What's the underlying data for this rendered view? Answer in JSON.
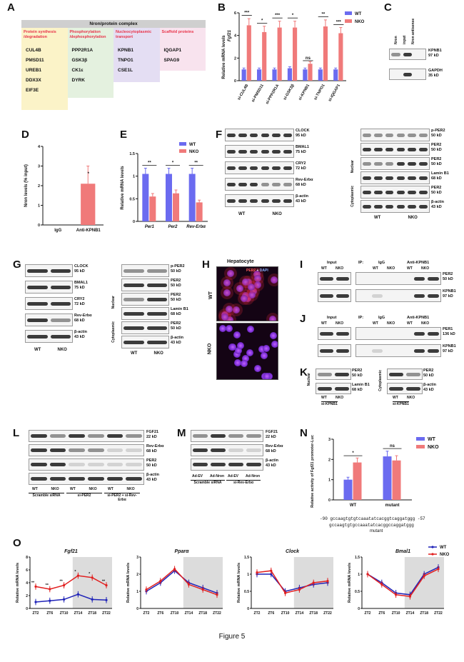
{
  "caption": "Figure 5",
  "A": {
    "letter": "A",
    "title": "Nron/protein complex",
    "categories": [
      {
        "name": "Protein synthesis /degradation",
        "color": "#fbf3c8",
        "items": [
          "CUL4B",
          "PMSD11",
          "UREB1",
          "DDX3X",
          "EIF3E"
        ]
      },
      {
        "name": "Phosphorylation /dephosphorylation",
        "color": "#e4f1df",
        "items": [
          "PPP2R1A",
          "GSK3β",
          "CK1ε",
          "DYRK"
        ]
      },
      {
        "name": "Nucleocytoplasmic transport",
        "color": "#e4def3",
        "items": [
          "KPNB1",
          "TNPO1",
          "CSE1L"
        ]
      },
      {
        "name": "Scaffold proteins",
        "color": "#f8e3ee",
        "items": [
          "IQGAP1",
          "SPAG9"
        ]
      }
    ]
  },
  "B": {
    "letter": "B",
    "ylabel_gene": "Fgf21",
    "ylabel": "Relative mRNA levels",
    "legend": [
      "WT",
      "NKO"
    ],
    "chart_data": {
      "type": "bar",
      "categories": [
        "si-CUL4B",
        "si-PMSD11",
        "si-PPP2R1A",
        "si-GSK3β",
        "si-KPNB1",
        "si-TNPO1",
        "si-IQGAP1"
      ],
      "series": [
        {
          "name": "WT",
          "values": [
            1.0,
            1.0,
            1.0,
            1.1,
            1.0,
            1.0,
            1.0
          ],
          "color": "#6b6bf0"
        },
        {
          "name": "NKO",
          "values": [
            4.9,
            4.3,
            4.7,
            4.7,
            1.5,
            4.8,
            4.2
          ],
          "color": "#f07a7a"
        }
      ],
      "ylim": [
        0,
        6
      ],
      "yticks": [
        0,
        2,
        4,
        6
      ],
      "significance": [
        "***",
        "*",
        "***",
        "*",
        "ns",
        "**",
        "***"
      ]
    }
  },
  "C": {
    "letter": "C",
    "lanes": [
      "Nron",
      "input",
      "Nron antisense"
    ],
    "blots": [
      {
        "name": "KPNB1",
        "size": "97 kD"
      },
      {
        "name": "GAPDH",
        "size": "35 kD"
      }
    ]
  },
  "D": {
    "letter": "D",
    "ylabel": "Nron levels (% input)",
    "chart_data": {
      "type": "bar",
      "categories": [
        "IgG",
        "Anti-KPNB1"
      ],
      "values": [
        0.0,
        2.1
      ],
      "error": [
        0,
        0.9
      ],
      "ylim": [
        0,
        4
      ],
      "yticks": [
        0,
        1,
        2,
        3,
        4
      ],
      "significance": "*"
    }
  },
  "E": {
    "letter": "E",
    "ylabel": "Relative mRNA levels",
    "legend": [
      "WT",
      "NKO"
    ],
    "chart_data": {
      "type": "bar",
      "categories": [
        "Per1",
        "Per2",
        "Rev-Erbα"
      ],
      "series": [
        {
          "name": "WT",
          "values": [
            1.05,
            1.05,
            1.05
          ],
          "color": "#6b6bf0"
        },
        {
          "name": "NKO",
          "values": [
            0.55,
            0.62,
            0.42
          ],
          "color": "#f07a7a"
        }
      ],
      "ylim": [
        0,
        1.5
      ],
      "yticks": [
        0.0,
        0.5,
        1.0,
        1.5
      ],
      "significance": [
        "**",
        "*",
        "**"
      ]
    }
  },
  "F": {
    "letter": "F",
    "left_blots": [
      {
        "name": "CLOCK",
        "size": "95 kD"
      },
      {
        "name": "BMAL1",
        "size": "75 kD"
      },
      {
        "name": "CRY2",
        "size": "72 kD"
      },
      {
        "name": "Rev-Erbα",
        "size": "68 kD"
      },
      {
        "name": "β-actin",
        "size": "43 kD"
      }
    ],
    "right_blots": [
      {
        "name": "p-PER2",
        "size": "50 kD"
      },
      {
        "name": "PER2",
        "size": "50 kD"
      },
      {
        "name": "PER2",
        "size": "50 kD"
      },
      {
        "name": "Lamin B1",
        "size": "68 kD"
      },
      {
        "name": "PER2",
        "size": "50 kD"
      },
      {
        "name": "β-actin",
        "size": "43 kD"
      }
    ],
    "nuclear": "Nuclear",
    "cytoplasmic": "Cytoplasmic",
    "groups": [
      "WT",
      "NKO"
    ]
  },
  "G": {
    "letter": "G",
    "left_blots": [
      {
        "name": "CLOCK",
        "size": "95 kD"
      },
      {
        "name": "BMAL1",
        "size": "75 kD"
      },
      {
        "name": "CRY2",
        "size": "72 kD"
      },
      {
        "name": "Rev-Erbα",
        "size": "68 kD"
      },
      {
        "name": "β-actin",
        "size": "43 kD"
      }
    ],
    "right_blots": [
      {
        "name": "p-PER2",
        "size": "50 kD"
      },
      {
        "name": "PER2",
        "size": "50 kD"
      },
      {
        "name": "PER2",
        "size": "50 kD"
      },
      {
        "name": "Lamin B1",
        "size": "68 kD"
      },
      {
        "name": "PER2",
        "size": "50 kD"
      },
      {
        "name": "β-actin",
        "size": "43 kD"
      }
    ],
    "nuclear": "Nuclear",
    "cytoplasmic": "Cytoplasmic",
    "groups": [
      "WT",
      "NKO"
    ]
  },
  "H": {
    "letter": "H",
    "title": "Hepatocyte",
    "stain_per2": "PER2",
    "stain_plus": " + ",
    "stain_dapi": "DAPI",
    "rows": [
      "WT",
      "NKO"
    ]
  },
  "I": {
    "letter": "I",
    "input": "Input",
    "ip": "IP:",
    "igg": "IgG",
    "anti": "Anti-KPNB1",
    "groups": [
      "WT",
      "NKO"
    ],
    "blots": [
      {
        "name": "PER2",
        "size": "50 kD"
      },
      {
        "name": "KPNB1",
        "size": "97 kD"
      }
    ]
  },
  "J": {
    "letter": "J",
    "input": "Input",
    "ip": "IP:",
    "igg": "IgG",
    "anti": "Anti-KPNB1",
    "groups": [
      "WT",
      "NKO"
    ],
    "blots": [
      {
        "name": "PER1",
        "size": "136 kD"
      },
      {
        "name": "KPNB1",
        "size": "97 kD"
      }
    ]
  },
  "K": {
    "letter": "K",
    "nuclear": "Nuclear",
    "cytoplasmic": "Cytoplasmic",
    "nuc_blots": [
      {
        "name": "PER2",
        "size": "50 kD"
      },
      {
        "name": "Lamin B1",
        "size": "68 kD"
      }
    ],
    "cyto_blots": [
      {
        "name": "PER2",
        "size": "50 kD"
      },
      {
        "name": "β-actin",
        "size": "43 kD"
      }
    ],
    "groups": [
      "WT",
      "NKO"
    ],
    "treatment": "si-KPNB1"
  },
  "L": {
    "letter": "L",
    "blots": [
      {
        "name": "FGF21",
        "size": "22 kD"
      },
      {
        "name": "Rev-Erbα",
        "size": "68 kD"
      },
      {
        "name": "PER2",
        "size": "50 kD"
      },
      {
        "name": "β-actin",
        "size": "43 kD"
      }
    ],
    "groups": [
      "WT",
      "NKO",
      "WT",
      "NKO",
      "WT",
      "NKO"
    ],
    "conditions": [
      "Scramble siRNA",
      "si-PER2",
      "si-PER2 + si-Rev-Erbα"
    ]
  },
  "M": {
    "letter": "M",
    "blots": [
      {
        "name": "FGF21",
        "size": "22 kD"
      },
      {
        "name": "Rev-Erbα",
        "size": "68 kD"
      },
      {
        "name": "β-actin",
        "size": "43 kD"
      }
    ],
    "lanes": [
      "Ad-EV",
      "Ad-Nron",
      "Ad-EV",
      "Ad-Nron"
    ],
    "conditions": [
      "Scramble siRNA",
      "si-Rev-Erbα"
    ]
  },
  "N": {
    "letter": "N",
    "ylabel": "Relative activity of Fgf21 promoter-Luc",
    "legend": [
      "WT",
      "NKO"
    ],
    "chart_data": {
      "type": "bar",
      "categories": [
        "WT",
        "mutant"
      ],
      "series": [
        {
          "name": "WT",
          "values": [
            1.0,
            2.15
          ],
          "color": "#6b6bf0"
        },
        {
          "name": "NKO",
          "values": [
            1.85,
            1.95
          ],
          "color": "#f07a7a"
        }
      ],
      "ylim": [
        0,
        3
      ],
      "yticks": [
        0,
        1,
        2,
        3
      ],
      "significance": [
        "*",
        "ns"
      ]
    },
    "seq_start": "-90",
    "seq_end": "-57",
    "seq_wt": "gccaagtgtgtcaaatatcacggtcaggatggg",
    "seq_mut": "gccaagtgtgccaaatatcacggccaggatggg",
    "mutant_label": "mutant"
  },
  "O": {
    "letter": "O",
    "legend": [
      "WT",
      "NKO"
    ],
    "ylabel": "Relative mRNA levels",
    "xticks": [
      "ZT2",
      "ZT6",
      "ZT10",
      "ZT14",
      "ZT18",
      "ZT22"
    ],
    "chart_data": [
      {
        "type": "line",
        "title": "Fgf21",
        "ylim": [
          0,
          8
        ],
        "yticks": [
          0,
          2,
          4,
          6,
          8
        ],
        "series": [
          {
            "name": "WT",
            "values": [
              1.0,
              1.2,
              1.4,
              2.2,
              1.4,
              1.3
            ],
            "color": "#1f23b8"
          },
          {
            "name": "NKO",
            "values": [
              3.4,
              3.0,
              3.6,
              5.1,
              4.8,
              3.6
            ],
            "color": "#e11f1f"
          }
        ],
        "significance": [
          "**",
          "**",
          "**",
          "*",
          "*",
          "**"
        ]
      },
      {
        "type": "line",
        "title": "Pparα",
        "ylim": [
          0,
          3
        ],
        "yticks": [
          0,
          1,
          2,
          3
        ],
        "series": [
          {
            "name": "WT",
            "values": [
              1.0,
              1.5,
              2.2,
              1.5,
              1.2,
              0.9
            ],
            "color": "#1f23b8"
          },
          {
            "name": "NKO",
            "values": [
              1.1,
              1.6,
              2.3,
              1.4,
              1.1,
              0.8
            ],
            "color": "#e11f1f"
          }
        ]
      },
      {
        "type": "line",
        "title": "Clock",
        "ylim": [
          0.0,
          1.5
        ],
        "yticks": [
          0.0,
          0.5,
          1.0,
          1.5
        ],
        "series": [
          {
            "name": "WT",
            "values": [
              1.0,
              1.0,
              0.5,
              0.6,
              0.7,
              0.75
            ],
            "color": "#1f23b8"
          },
          {
            "name": "NKO",
            "values": [
              1.05,
              1.1,
              0.45,
              0.55,
              0.75,
              0.8
            ],
            "color": "#e11f1f"
          }
        ]
      },
      {
        "type": "line",
        "title": "Bmal1",
        "ylim": [
          0.0,
          1.5
        ],
        "yticks": [
          0.0,
          0.5,
          1.0,
          1.5
        ],
        "series": [
          {
            "name": "WT",
            "values": [
              1.0,
              0.75,
              0.45,
              0.4,
              1.0,
              1.2
            ],
            "color": "#1f23b8"
          },
          {
            "name": "NKO",
            "values": [
              1.0,
              0.7,
              0.4,
              0.35,
              0.95,
              1.15
            ],
            "color": "#e11f1f"
          }
        ]
      }
    ]
  }
}
